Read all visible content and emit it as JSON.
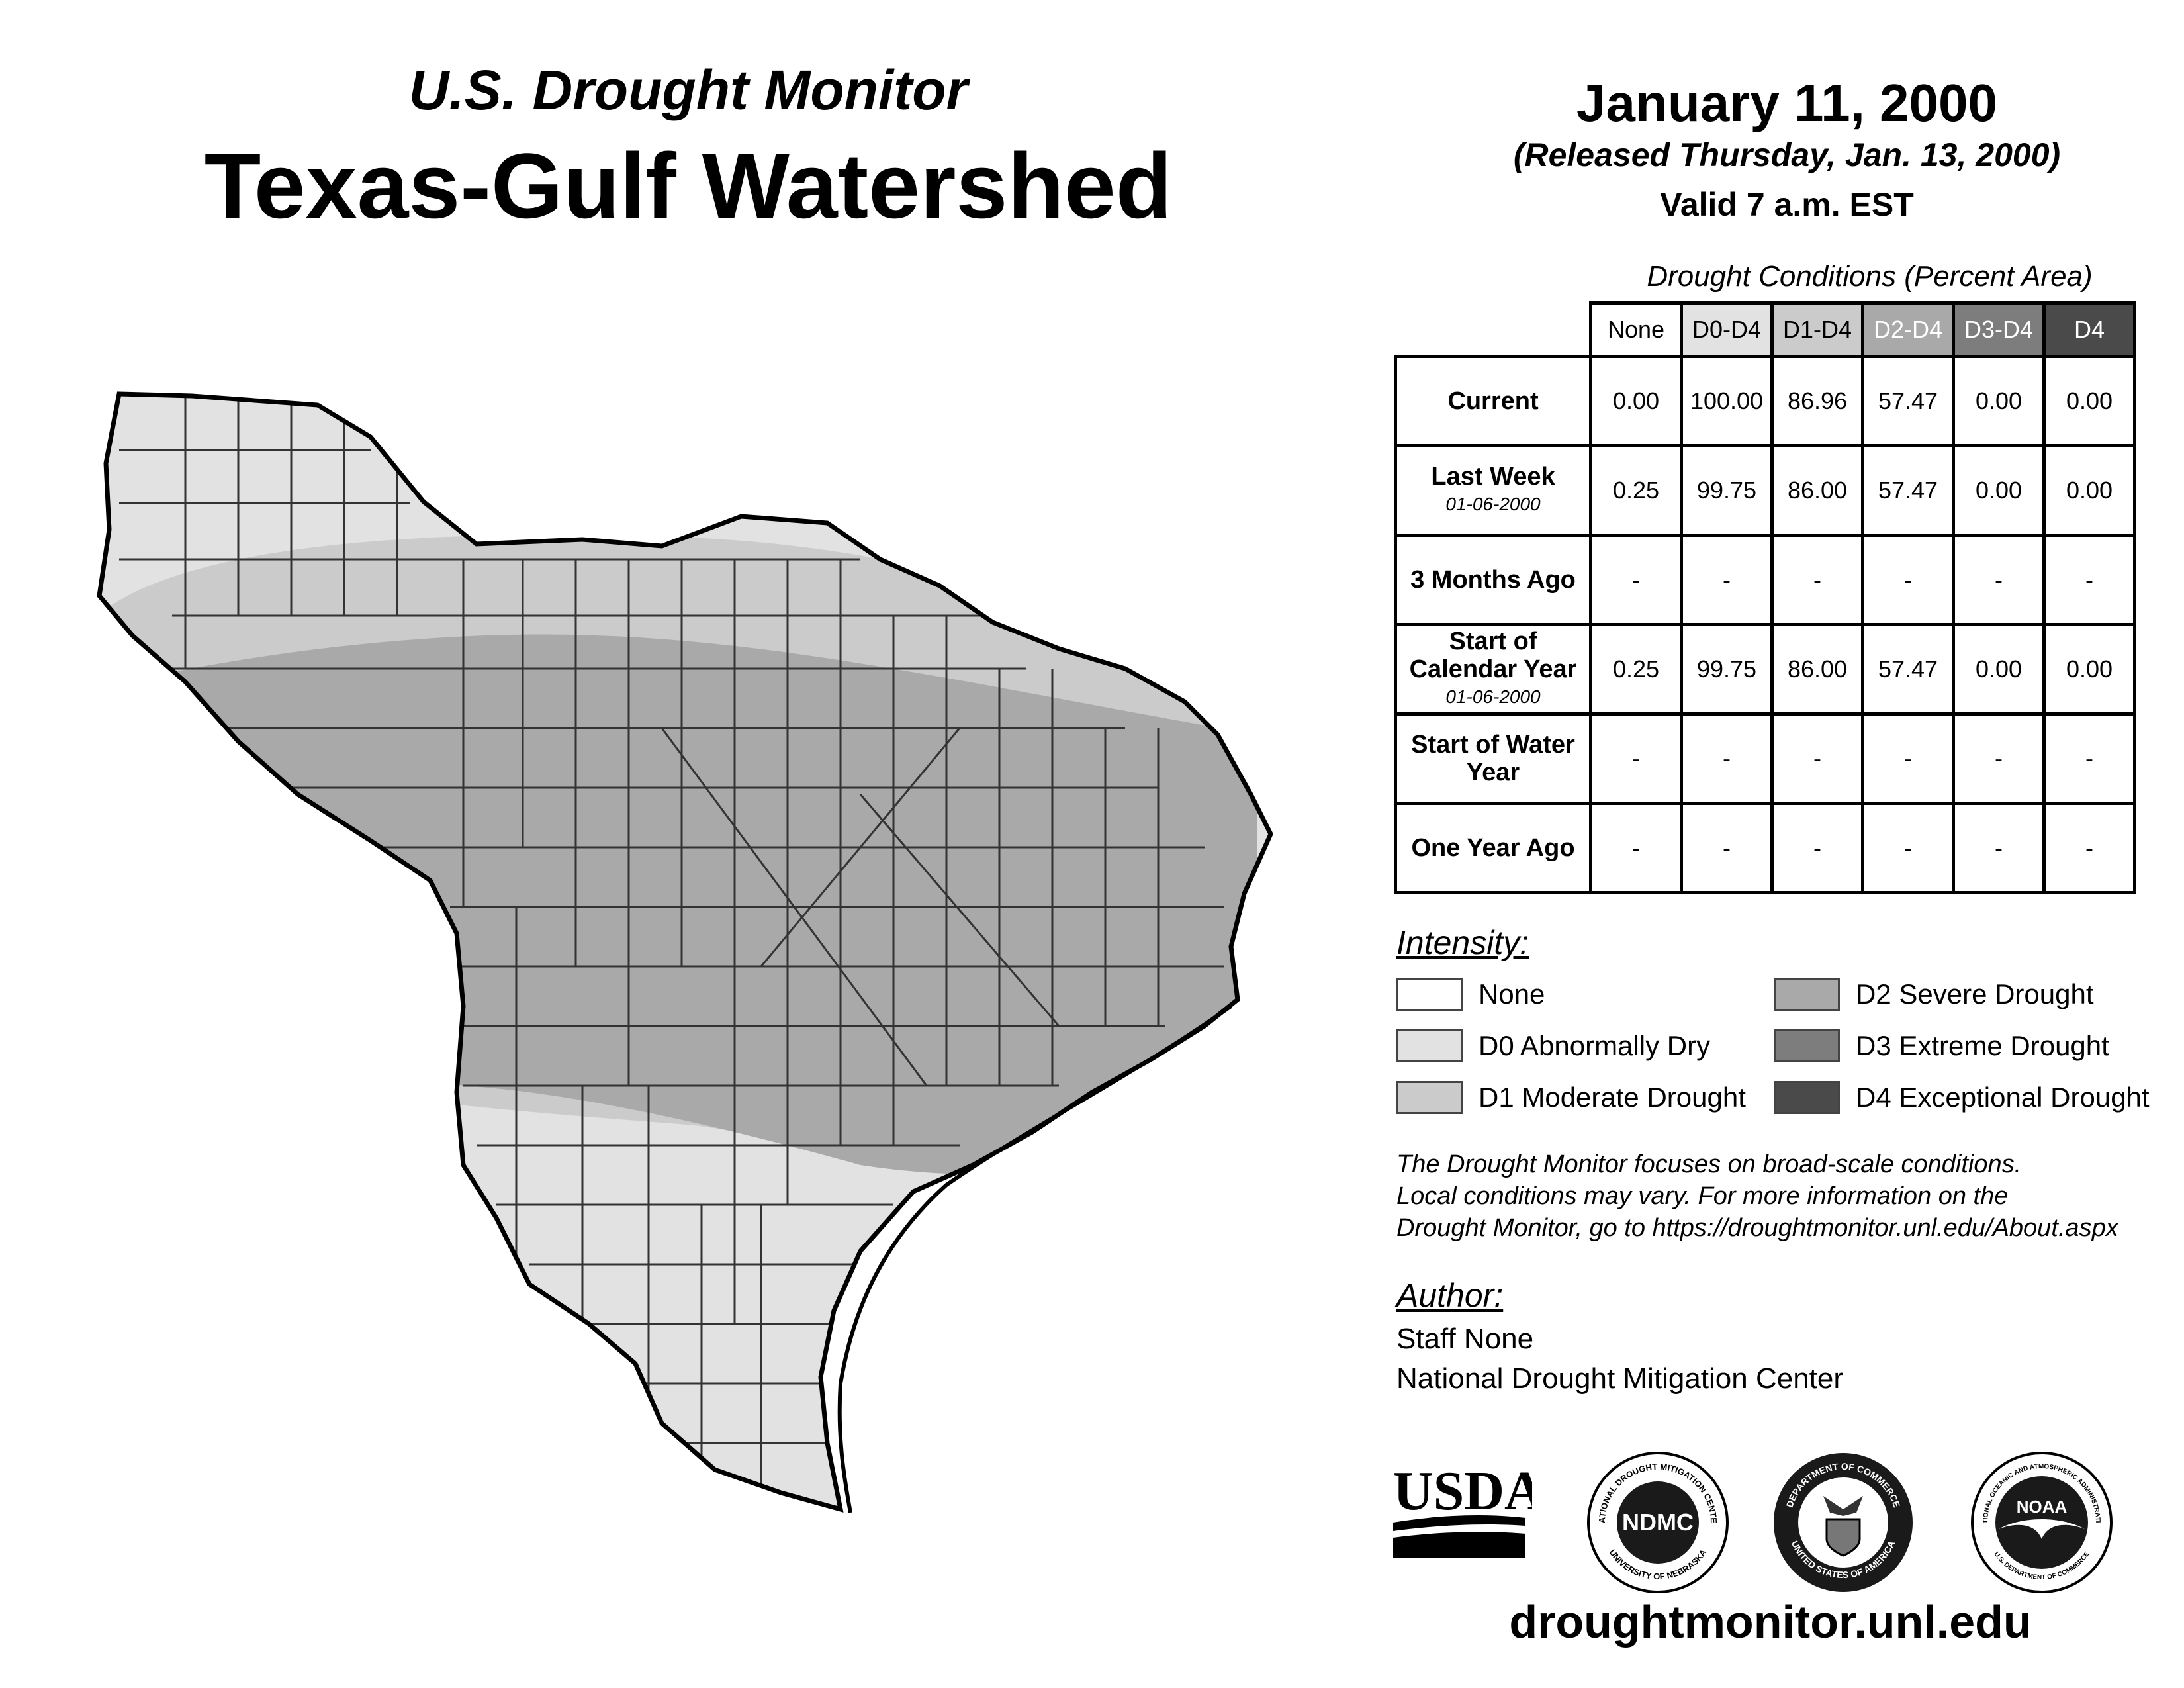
{
  "header": {
    "subtitle": "U.S. Drought Monitor",
    "title": "Texas-Gulf Watershed",
    "date": "January 11, 2000",
    "released": "(Released Thursday, Jan. 13, 2000)",
    "valid": "Valid 7 a.m. EST"
  },
  "table": {
    "caption": "Drought Conditions (Percent Area)",
    "columns": [
      "None",
      "D0-D4",
      "D1-D4",
      "D2-D4",
      "D3-D4",
      "D4"
    ],
    "rows": [
      {
        "label": "Current",
        "sublabel": "",
        "values": [
          "0.00",
          "100.00",
          "86.96",
          "57.47",
          "0.00",
          "0.00"
        ]
      },
      {
        "label": "Last Week",
        "sublabel": "01-06-2000",
        "values": [
          "0.25",
          "99.75",
          "86.00",
          "57.47",
          "0.00",
          "0.00"
        ]
      },
      {
        "label": "3 Months Ago",
        "sublabel": "",
        "values": [
          "-",
          "-",
          "-",
          "-",
          "-",
          "-"
        ]
      },
      {
        "label": "Start of Calendar Year",
        "sublabel": "01-06-2000",
        "values": [
          "0.25",
          "99.75",
          "86.00",
          "57.47",
          "0.00",
          "0.00"
        ]
      },
      {
        "label": "Start of Water Year",
        "sublabel": "",
        "values": [
          "-",
          "-",
          "-",
          "-",
          "-",
          "-"
        ]
      },
      {
        "label": "One Year Ago",
        "sublabel": "",
        "values": [
          "-",
          "-",
          "-",
          "-",
          "-",
          "-"
        ]
      }
    ]
  },
  "legend": {
    "title": "Intensity:",
    "items": [
      {
        "label": "None",
        "color": "#ffffff"
      },
      {
        "label": "D0 Abnormally Dry",
        "color": "#e2e2e2"
      },
      {
        "label": "D1 Moderate Drought",
        "color": "#cbcbcb"
      },
      {
        "label": "D2 Severe Drought",
        "color": "#a9a9a9"
      },
      {
        "label": "D3 Extreme Drought",
        "color": "#7d7d7d"
      },
      {
        "label": "D4 Exceptional Drought",
        "color": "#4a4a4a"
      }
    ]
  },
  "note": {
    "line1": "The Drought Monitor focuses on broad-scale conditions.",
    "line2": "Local conditions may vary. For more information on the",
    "line3": "Drought Monitor, go to https://droughtmonitor.unl.edu/About.aspx"
  },
  "author": {
    "title": "Author:",
    "name": "Staff None",
    "org": "National Drought Mitigation Center"
  },
  "logos": {
    "usda": "USDA",
    "ndmc": "NDMC",
    "ndmc_ring_top": "NATIONAL DROUGHT MITIGATION CENTER",
    "ndmc_ring_bottom": "UNIVERSITY OF NEBRASKA",
    "doc_ring_top": "DEPARTMENT OF COMMERCE",
    "doc_ring_bottom": "UNITED STATES OF AMERICA",
    "noaa": "NOAA",
    "noaa_ring_top": "NATIONAL OCEANIC AND ATMOSPHERIC ADMINISTRATION",
    "noaa_ring_bottom": "U.S. DEPARTMENT OF COMMERCE"
  },
  "footer": {
    "url": "droughtmonitor.unl.edu"
  },
  "colors": {
    "header_none": "#ffffff",
    "header_d0": "#e2e2e2",
    "header_d1": "#cbcbcb",
    "header_d2": "#a9a9a9",
    "header_d3": "#7d7d7d",
    "header_d4": "#4a4a4a",
    "map_outline": "#000000",
    "county_line": "#333333"
  }
}
